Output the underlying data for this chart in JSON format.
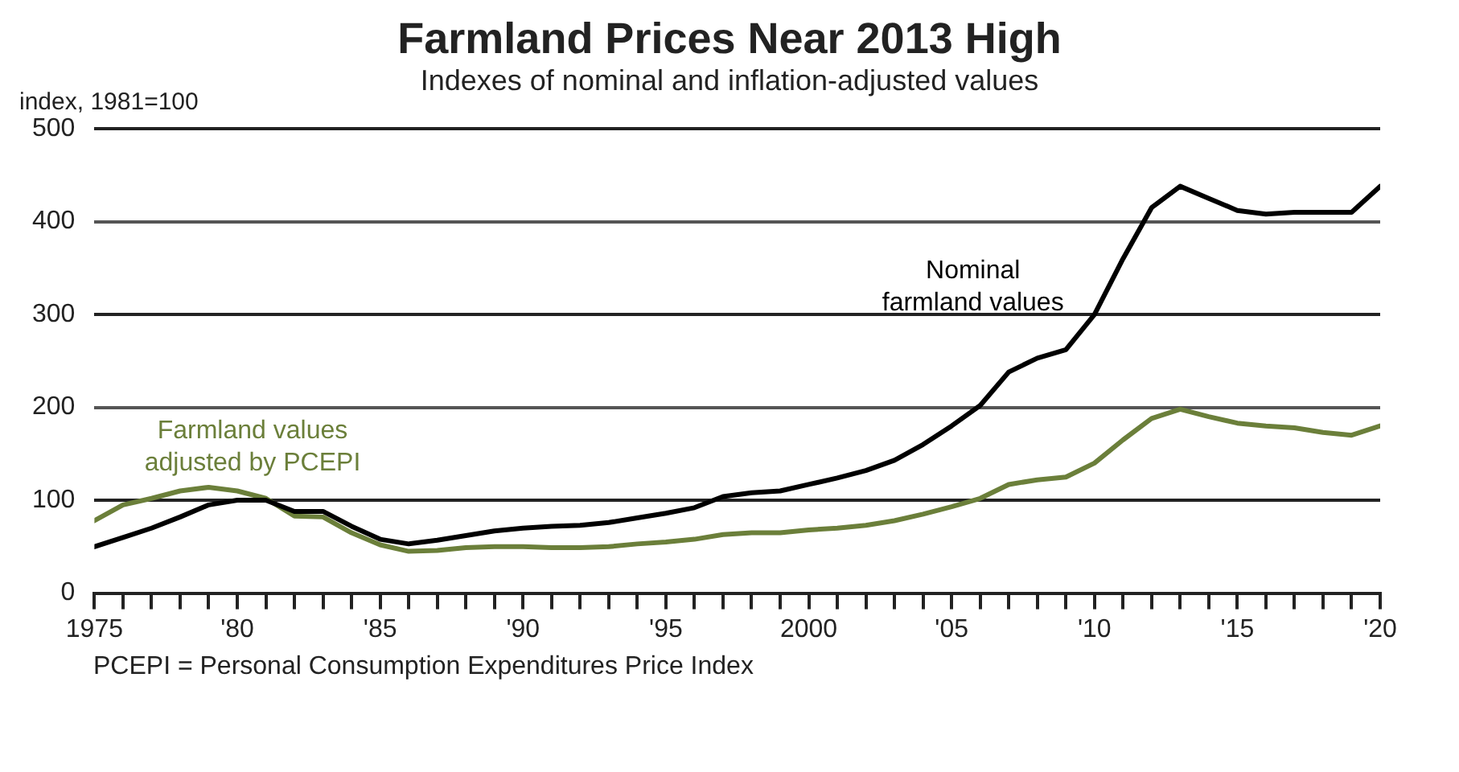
{
  "chart_data": {
    "type": "line",
    "title": "Farmland Prices Near 2013 High",
    "subtitle": "Indexes of nominal and inflation-adjusted values",
    "ylabel": "index, 1981=100",
    "x": [
      1975,
      1976,
      1977,
      1978,
      1979,
      1980,
      1981,
      1982,
      1983,
      1984,
      1985,
      1986,
      1987,
      1988,
      1989,
      1990,
      1991,
      1992,
      1993,
      1994,
      1995,
      1996,
      1997,
      1998,
      1999,
      2000,
      2001,
      2002,
      2003,
      2004,
      2005,
      2006,
      2007,
      2008,
      2009,
      2010,
      2011,
      2012,
      2013,
      2014,
      2015,
      2016,
      2017,
      2018,
      2019,
      2020
    ],
    "series": [
      {
        "name": "Nominal farmland values",
        "color": "#000000",
        "values": [
          50,
          60,
          70,
          82,
          95,
          100,
          100,
          88,
          88,
          72,
          58,
          53,
          57,
          62,
          67,
          70,
          72,
          73,
          76,
          81,
          86,
          92,
          104,
          108,
          110,
          117,
          124,
          132,
          143,
          160,
          180,
          202,
          238,
          253,
          262,
          300,
          360,
          415,
          438,
          425,
          412,
          408,
          410,
          410,
          410,
          438
        ]
      },
      {
        "name": "Farmland values adjusted by PCEPI",
        "color": "#6b7f3a",
        "values": [
          78,
          95,
          102,
          110,
          114,
          110,
          102,
          83,
          82,
          65,
          52,
          45,
          46,
          49,
          50,
          50,
          49,
          49,
          50,
          53,
          55,
          58,
          63,
          65,
          65,
          68,
          70,
          73,
          78,
          85,
          93,
          102,
          117,
          122,
          125,
          140,
          165,
          188,
          198,
          190,
          183,
          180,
          178,
          173,
          170,
          180
        ]
      }
    ],
    "xlim": [
      1975,
      2020
    ],
    "xticks": [
      {
        "value": 1975,
        "label": "1975"
      },
      {
        "value": 1976,
        "label": null
      },
      {
        "value": 1977,
        "label": null
      },
      {
        "value": 1978,
        "label": null
      },
      {
        "value": 1979,
        "label": null
      },
      {
        "value": 1980,
        "label": "'80"
      },
      {
        "value": 1981,
        "label": null
      },
      {
        "value": 1982,
        "label": null
      },
      {
        "value": 1983,
        "label": null
      },
      {
        "value": 1984,
        "label": null
      },
      {
        "value": 1985,
        "label": "'85"
      },
      {
        "value": 1986,
        "label": null
      },
      {
        "value": 1987,
        "label": null
      },
      {
        "value": 1988,
        "label": null
      },
      {
        "value": 1989,
        "label": null
      },
      {
        "value": 1990,
        "label": "'90"
      },
      {
        "value": 1991,
        "label": null
      },
      {
        "value": 1992,
        "label": null
      },
      {
        "value": 1993,
        "label": null
      },
      {
        "value": 1994,
        "label": null
      },
      {
        "value": 1995,
        "label": "'95"
      },
      {
        "value": 1996,
        "label": null
      },
      {
        "value": 1997,
        "label": null
      },
      {
        "value": 1998,
        "label": null
      },
      {
        "value": 1999,
        "label": null
      },
      {
        "value": 2000,
        "label": "2000"
      },
      {
        "value": 2001,
        "label": null
      },
      {
        "value": 2002,
        "label": null
      },
      {
        "value": 2003,
        "label": null
      },
      {
        "value": 2004,
        "label": null
      },
      {
        "value": 2005,
        "label": "'05"
      },
      {
        "value": 2006,
        "label": null
      },
      {
        "value": 2007,
        "label": null
      },
      {
        "value": 2008,
        "label": null
      },
      {
        "value": 2009,
        "label": null
      },
      {
        "value": 2010,
        "label": "'10"
      },
      {
        "value": 2011,
        "label": null
      },
      {
        "value": 2012,
        "label": null
      },
      {
        "value": 2013,
        "label": null
      },
      {
        "value": 2014,
        "label": null
      },
      {
        "value": 2015,
        "label": "'15"
      },
      {
        "value": 2016,
        "label": null
      },
      {
        "value": 2017,
        "label": null
      },
      {
        "value": 2018,
        "label": null
      },
      {
        "value": 2019,
        "label": null
      },
      {
        "value": 2020,
        "label": "'20"
      }
    ],
    "ylim": [
      0,
      500
    ],
    "yticks": [
      0,
      100,
      200,
      300,
      400,
      500
    ],
    "grid": "y",
    "legend": false,
    "marker": "none",
    "line_style": "solid",
    "annotations": [
      "PCEPI = Personal Consumption Expenditures Price Index"
    ]
  }
}
